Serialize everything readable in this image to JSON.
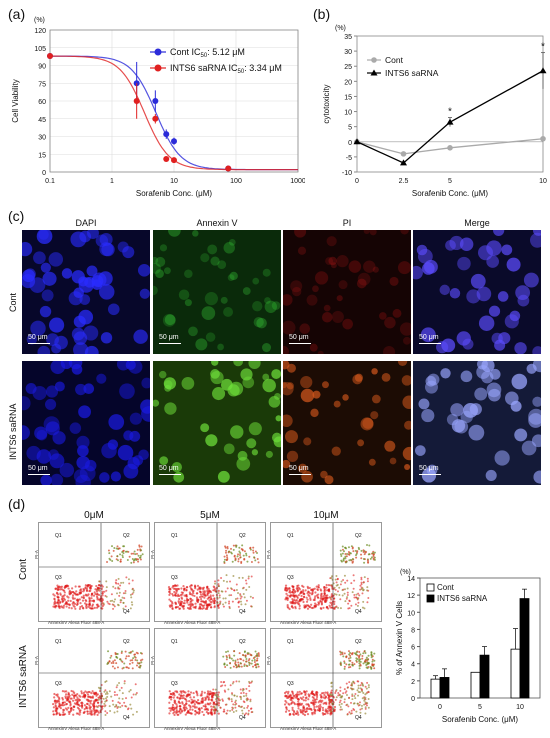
{
  "panel_labels": {
    "a": "(a)",
    "b": "(b)",
    "c": "(c)",
    "d": "(d)"
  },
  "colors": {
    "cont_blue": "#2b2bd9",
    "saRNA_red": "#e02020",
    "cont_gray": "#aaaaaa",
    "black": "#000000"
  },
  "chart_data": [
    {
      "type": "scatter",
      "id": "a",
      "ylabel": "Cell Viability",
      "unit": "(%)",
      "xlabel": "Sorafenib Conc. (μM)",
      "xscale": "log",
      "xlim": [
        0.1,
        1000
      ],
      "ylim": [
        0,
        120
      ],
      "x_ticks": [
        "0.1",
        "1",
        "10",
        "100",
        "1000"
      ],
      "y_ticks": [
        "0",
        "15",
        "30",
        "45",
        "60",
        "75",
        "90",
        "105",
        "120"
      ],
      "legend_placement": "top-right",
      "series": [
        {
          "name": "Cont",
          "ic50_label": "IC50: 5.12 μM",
          "ic50_prefix": "IC",
          "ic50_sub": "50",
          "ic50_value": ": 5.12 μM",
          "color": "#2b2bd9",
          "x": [
            0.1,
            2.5,
            5,
            7.5,
            10,
            75
          ],
          "y": [
            98,
            75,
            60,
            32,
            26,
            3
          ],
          "err": [
            0,
            18,
            9,
            4,
            3,
            0
          ],
          "ic50": 5.12
        },
        {
          "name": "INTS6 saRNA",
          "ic50_label": "IC50: 3.34 μM",
          "ic50_prefix": "IC",
          "ic50_sub": "50",
          "ic50_value": ": 3.34 μM",
          "color": "#e02020",
          "x": [
            0.1,
            2.5,
            5,
            7.5,
            10,
            75
          ],
          "y": [
            98,
            60,
            45,
            11,
            10,
            3
          ],
          "err": [
            0,
            15,
            4,
            2,
            1,
            0
          ],
          "ic50": 3.34
        }
      ]
    },
    {
      "type": "line",
      "id": "b",
      "ylabel": "cytotoxicity",
      "unit": "(%)",
      "xlabel": "Sorafenib Conc. (μM)",
      "categories": [
        "0",
        "2.5",
        "5",
        "10"
      ],
      "ylim": [
        -10,
        35
      ],
      "y_ticks": [
        "-10",
        "-5",
        "0",
        "5",
        "10",
        "15",
        "20",
        "25",
        "30",
        "35"
      ],
      "legend_placement": "top-left",
      "series": [
        {
          "name": "Cont",
          "color": "#aaaaaa",
          "marker": "circle",
          "values": [
            0,
            -4,
            -2,
            1
          ],
          "err": [
            0,
            0,
            0,
            0
          ]
        },
        {
          "name": "INTS6 saRNA",
          "color": "#000000",
          "marker": "triangle",
          "values": [
            0,
            -7,
            6.5,
            23.5
          ],
          "err": [
            0,
            0,
            1.5,
            6
          ]
        }
      ],
      "significance": [
        {
          "index": 2,
          "label": "*"
        },
        {
          "index": 3,
          "label": "*"
        }
      ]
    },
    {
      "type": "bar",
      "id": "d-bar",
      "ylabel": "% of Annexin V Cells",
      "unit": "(%)",
      "xlabel": "Sorafenib Conc. (μM)",
      "categories": [
        "0",
        "5",
        "10"
      ],
      "ylim": [
        0,
        14
      ],
      "y_ticks": [
        "0",
        "2",
        "4",
        "6",
        "8",
        "10",
        "12",
        "14"
      ],
      "legend_placement": "top-left",
      "series": [
        {
          "name": "Cont",
          "fill": "#ffffff",
          "values": [
            2.2,
            3.0,
            5.7
          ],
          "err": [
            0.4,
            0,
            2.4
          ]
        },
        {
          "name": "INTS6 saRNA",
          "fill": "#000000",
          "values": [
            2.4,
            5.0,
            11.6
          ],
          "err": [
            1.0,
            1.0,
            1.1
          ]
        }
      ]
    }
  ],
  "microscopy": {
    "columns": [
      "DAPI",
      "Annexin V",
      "PI",
      "Merge"
    ],
    "rows": [
      "Cont",
      "INTS6 saRNA"
    ],
    "scale_bar": "50 μm"
  },
  "flow": {
    "columns": [
      "0μM",
      "5μM",
      "10μM"
    ],
    "rows": [
      "Cont",
      "INTS6 saRNA"
    ],
    "quadrants": [
      "Q1",
      "Q2",
      "Q3",
      "Q4"
    ],
    "x_axis": "AnnexinV Alexa Fluor 488-A",
    "y_axis": "PI-A"
  }
}
